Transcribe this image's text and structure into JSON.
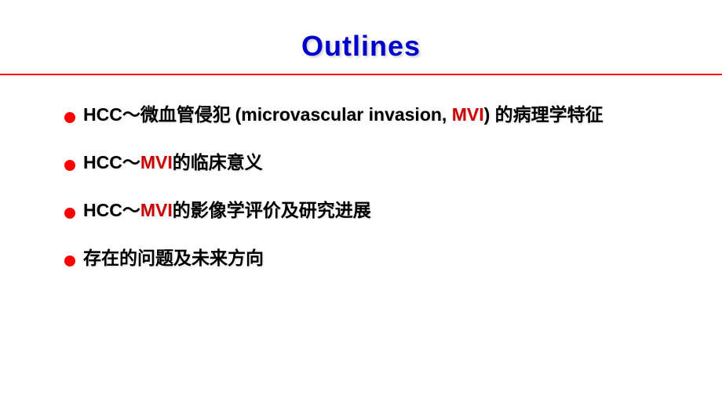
{
  "title": "Outlines",
  "colors": {
    "title_color": "#0000cc",
    "divider_color": "#ff0000",
    "bullet_color": "#ff0000",
    "text_color": "#000000",
    "mvi_color": "#cc0000",
    "background": "#ffffff"
  },
  "typography": {
    "title_fontsize": 36,
    "bullet_fontsize": 23,
    "title_weight": "bold",
    "bullet_weight": "bold"
  },
  "bullets": [
    {
      "segments": [
        {
          "text": "HCC",
          "class": "hcc-prefix"
        },
        {
          "text": "～",
          "class": "tilde"
        },
        {
          "text": "微血管侵犯 ",
          "class": ""
        },
        {
          "text": "(microvascular invasion, ",
          "class": "english-part"
        },
        {
          "text": "MVI",
          "class": "mvi-red"
        },
        {
          "text": ") ",
          "class": "english-part"
        },
        {
          "text": "的病理学特征",
          "class": ""
        }
      ]
    },
    {
      "segments": [
        {
          "text": "HCC",
          "class": "hcc-prefix"
        },
        {
          "text": "～",
          "class": "tilde"
        },
        {
          "text": "MVI",
          "class": "mvi-red"
        },
        {
          "text": "的临床意义",
          "class": ""
        }
      ]
    },
    {
      "segments": [
        {
          "text": "HCC",
          "class": "hcc-prefix"
        },
        {
          "text": "～",
          "class": "tilde"
        },
        {
          "text": "MVI",
          "class": "mvi-red"
        },
        {
          "text": "的影像学评价及研究进展",
          "class": ""
        }
      ]
    },
    {
      "segments": [
        {
          "text": "存在的问题及未来方向",
          "class": ""
        }
      ]
    }
  ]
}
